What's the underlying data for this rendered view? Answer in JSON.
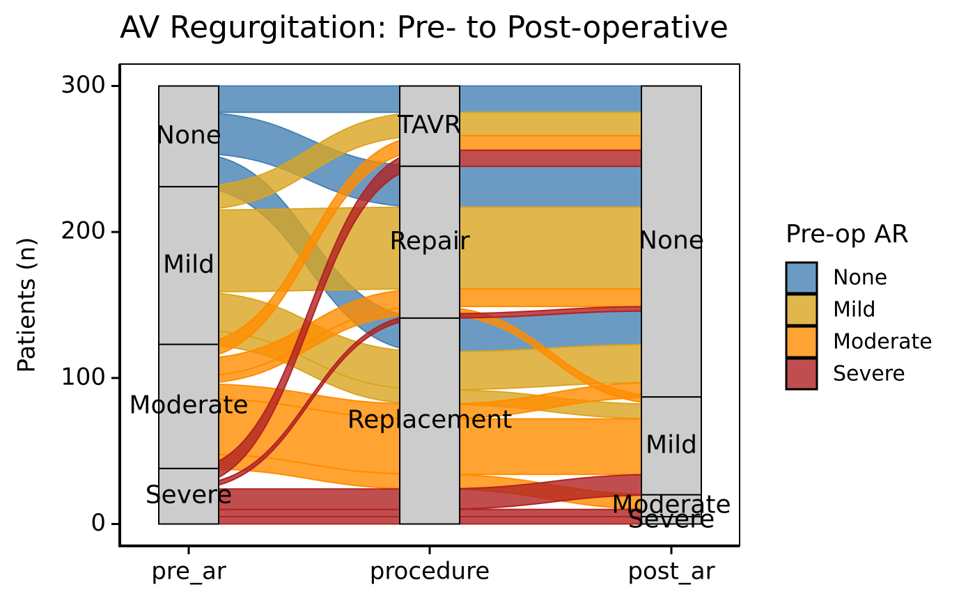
{
  "chart_data": {
    "type": "alluvial",
    "title": "AV Regurgitation: Pre- to Post-operative",
    "y_label": "Patients (n)",
    "legend_title": "Pre-op AR",
    "ylim": [
      -15,
      315
    ],
    "yticks": [
      0,
      100,
      200,
      300
    ],
    "axes": [
      {
        "name": "pre_ar",
        "strata": [
          "None",
          "Mild",
          "Moderate",
          "Severe"
        ]
      },
      {
        "name": "procedure",
        "strata": [
          "TAVR",
          "Repair",
          "Replacement"
        ]
      },
      {
        "name": "post_ar",
        "strata": [
          "None",
          "Mild",
          "Moderate",
          "Severe"
        ]
      }
    ],
    "series": [
      {
        "name": "None",
        "color": "#4682b4"
      },
      {
        "name": "Mild",
        "color": "#daa520"
      },
      {
        "name": "Moderate",
        "color": "#ff8c00"
      },
      {
        "name": "Severe",
        "color": "#b22222"
      }
    ],
    "flows": [
      {
        "pre_ar": "None",
        "procedure": "TAVR",
        "post_ar": "None",
        "n": 18
      },
      {
        "pre_ar": "None",
        "procedure": "Repair",
        "post_ar": "None",
        "n": 28
      },
      {
        "pre_ar": "None",
        "procedure": "Replacement",
        "post_ar": "None",
        "n": 23
      },
      {
        "pre_ar": "Mild",
        "procedure": "TAVR",
        "post_ar": "None",
        "n": 16
      },
      {
        "pre_ar": "Mild",
        "procedure": "Repair",
        "post_ar": "None",
        "n": 56
      },
      {
        "pre_ar": "Mild",
        "procedure": "Replacement",
        "post_ar": "None",
        "n": 26
      },
      {
        "pre_ar": "Mild",
        "procedure": "Replacement",
        "post_ar": "Mild",
        "n": 10
      },
      {
        "pre_ar": "Moderate",
        "procedure": "TAVR",
        "post_ar": "None",
        "n": 10
      },
      {
        "pre_ar": "Moderate",
        "procedure": "Repair",
        "post_ar": "None",
        "n": 12
      },
      {
        "pre_ar": "Moderate",
        "procedure": "Repair",
        "post_ar": "Mild",
        "n": 5
      },
      {
        "pre_ar": "Moderate",
        "procedure": "Replacement",
        "post_ar": "None",
        "n": 10
      },
      {
        "pre_ar": "Moderate",
        "procedure": "Replacement",
        "post_ar": "Mild",
        "n": 38
      },
      {
        "pre_ar": "Moderate",
        "procedure": "Replacement",
        "post_ar": "Moderate",
        "n": 10
      },
      {
        "pre_ar": "Severe",
        "procedure": "TAVR",
        "post_ar": "None",
        "n": 11
      },
      {
        "pre_ar": "Severe",
        "procedure": "Repair",
        "post_ar": "None",
        "n": 3
      },
      {
        "pre_ar": "Severe",
        "procedure": "Replacement",
        "post_ar": "Mild",
        "n": 14
      },
      {
        "pre_ar": "Severe",
        "procedure": "Replacement",
        "post_ar": "Moderate",
        "n": 5
      },
      {
        "pre_ar": "Severe",
        "procedure": "Replacement",
        "post_ar": "Severe",
        "n": 5
      }
    ]
  }
}
